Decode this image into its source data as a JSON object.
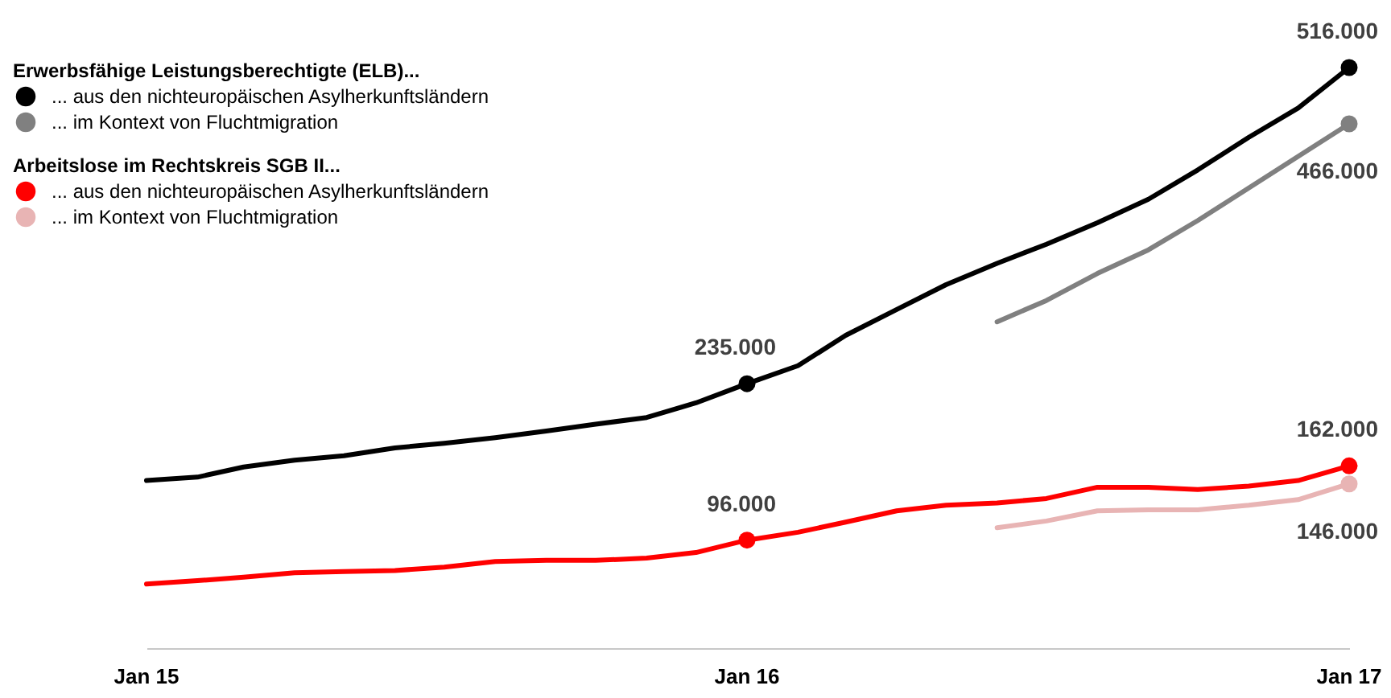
{
  "chart_data": {
    "type": "line",
    "x": [
      "2015-01",
      "2015-02",
      "2015-03",
      "2015-04",
      "2015-05",
      "2015-06",
      "2015-07",
      "2015-08",
      "2015-09",
      "2015-10",
      "2015-11",
      "2015-12",
      "2016-01",
      "2016-02",
      "2016-03",
      "2016-04",
      "2016-05",
      "2016-06",
      "2016-07",
      "2016-08",
      "2016-09",
      "2016-10",
      "2016-11",
      "2016-12",
      "2017-01"
    ],
    "xlim": [
      "2015-01",
      "2017-01"
    ],
    "xticks": [
      {
        "value": "2015-01",
        "label": "Jan 15"
      },
      {
        "value": "2016-01",
        "label": "Jan 16"
      },
      {
        "value": "2017-01",
        "label": "Jan 17"
      }
    ],
    "tick_labels": "x",
    "grid": false,
    "legend": "top left",
    "annotations": [
      "Erwerbsfähige Leistungsberechtigte (ELB)...",
      "Arbeitslose im Rechtskreis SGB II..."
    ],
    "series": [
      {
        "name": "... aus den nichteuropäischen  Asylherkunftsländern",
        "color": "#000000",
        "values": [
          149000,
          152000,
          161000,
          167000,
          171000,
          178000,
          182000,
          187000,
          193000,
          199000,
          205000,
          218000,
          235000,
          251000,
          278000,
          301000,
          323000,
          342000,
          359000,
          378000,
          399000,
          425000,
          454000,
          480000,
          516000
        ],
        "value_labels": [
          null,
          null,
          null,
          null,
          null,
          null,
          null,
          null,
          null,
          null,
          null,
          null,
          "235.000",
          null,
          null,
          null,
          null,
          null,
          null,
          null,
          null,
          null,
          null,
          null,
          "516.000"
        ]
      },
      {
        "name": "... im Kontext  von Fluchtmigration",
        "color": "#808080",
        "values": [
          null,
          null,
          null,
          null,
          null,
          null,
          null,
          null,
          null,
          null,
          null,
          null,
          null,
          null,
          null,
          null,
          null,
          290000,
          309000,
          333000,
          354000,
          380000,
          409000,
          437000,
          466000
        ],
        "value_labels": [
          null,
          null,
          null,
          null,
          null,
          null,
          null,
          null,
          null,
          null,
          null,
          null,
          null,
          null,
          null,
          null,
          null,
          null,
          null,
          null,
          null,
          null,
          null,
          null,
          "466.000"
        ]
      },
      {
        "name": "... aus den nichteuropäischen  Asylherkunftsländern",
        "color": "#ff0000",
        "values": [
          57000,
          60000,
          63000,
          67000,
          68000,
          69000,
          72000,
          77000,
          78000,
          78000,
          80000,
          85000,
          96000,
          103000,
          112000,
          122000,
          127000,
          129000,
          133000,
          143000,
          143000,
          141000,
          144000,
          149000,
          162000
        ],
        "value_labels": [
          null,
          null,
          null,
          null,
          null,
          null,
          null,
          null,
          null,
          null,
          null,
          null,
          "96.000",
          null,
          null,
          null,
          null,
          null,
          null,
          null,
          null,
          null,
          null,
          null,
          "162.000"
        ]
      },
      {
        "name": "... im Kontext  von Fluchtmigration",
        "color": "#e8b4b4",
        "values": [
          null,
          null,
          null,
          null,
          null,
          null,
          null,
          null,
          null,
          null,
          null,
          null,
          null,
          null,
          null,
          null,
          null,
          107000,
          113000,
          122000,
          123000,
          123000,
          127000,
          132000,
          146000
        ],
        "value_labels": [
          null,
          null,
          null,
          null,
          null,
          null,
          null,
          null,
          null,
          null,
          null,
          null,
          null,
          null,
          null,
          null,
          null,
          null,
          null,
          null,
          null,
          null,
          null,
          null,
          "146.000"
        ]
      }
    ]
  }
}
